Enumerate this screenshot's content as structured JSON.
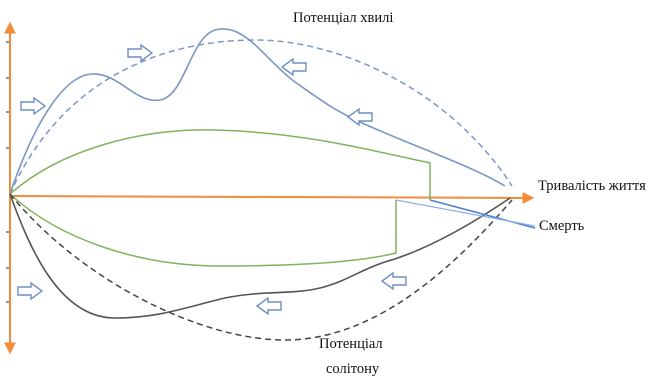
{
  "labels": {
    "wave_potential": "Потенціал хвилі",
    "lifespan": "Тривалість життя",
    "death": "Смерть",
    "soliton_potential_line1": "Потенціал",
    "soliton_potential_line2": "солітону"
  },
  "colors": {
    "axis_orange": "#f28c3a",
    "wave_blue": "#7a98c4",
    "green": "#7fb45a",
    "soliton_dark": "#555555",
    "death_line": "#4f7fd0",
    "arrow_outline": "#6f8fc4"
  },
  "icons": {
    "direction_arrows": "outline-right-arrow",
    "vertical_axis": "double-headed-arrow",
    "horizontal_axis": "right-arrow"
  }
}
